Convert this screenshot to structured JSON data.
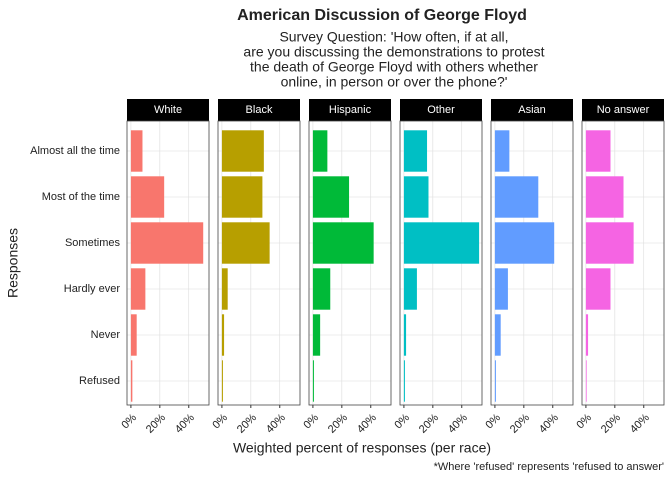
{
  "chart_data": {
    "type": "bar",
    "title": "American Discussion of George Floyd",
    "subtitle": [
      "Survey Question: 'How often, if at all,",
      "are you discussing the demonstrations to protest",
      "the death of George Floyd with others whether",
      "online, in person or over the phone?'"
    ],
    "x_label": "Weighted percent of responses (per race)",
    "y_label": "Responses",
    "caption": "*Where 'refused' represents 'refused to answer'",
    "categories": [
      "Almost all the time",
      "Most of the time",
      "Sometimes",
      "Hardly ever",
      "Never",
      "Refused"
    ],
    "series": [
      {
        "name": "White",
        "color": "#F8766D",
        "values": [
          8,
          23,
          50,
          10,
          4,
          1
        ]
      },
      {
        "name": "Black",
        "color": "#B79F00",
        "values": [
          29,
          28,
          33,
          4,
          1.5,
          0.7
        ]
      },
      {
        "name": "Hispanic",
        "color": "#00BA38",
        "values": [
          10,
          25,
          42,
          12,
          5,
          0.7
        ]
      },
      {
        "name": "Other",
        "color": "#00BFC4",
        "values": [
          16,
          17,
          52,
          9,
          1.5,
          0.7
        ]
      },
      {
        "name": "Asian",
        "color": "#619CFF",
        "values": [
          10,
          30,
          41,
          9,
          4,
          0.7
        ]
      },
      {
        "name": "No answer",
        "color": "#F564E3",
        "values": [
          17,
          26,
          33,
          17,
          1.5,
          0.5
        ]
      }
    ],
    "xlim": [
      -2.7,
      54
    ],
    "xticks": [
      {
        "value": 0,
        "label": "0%"
      },
      {
        "value": 20,
        "label": "20%"
      },
      {
        "value": 40,
        "label": "40%"
      }
    ],
    "grid": true
  }
}
